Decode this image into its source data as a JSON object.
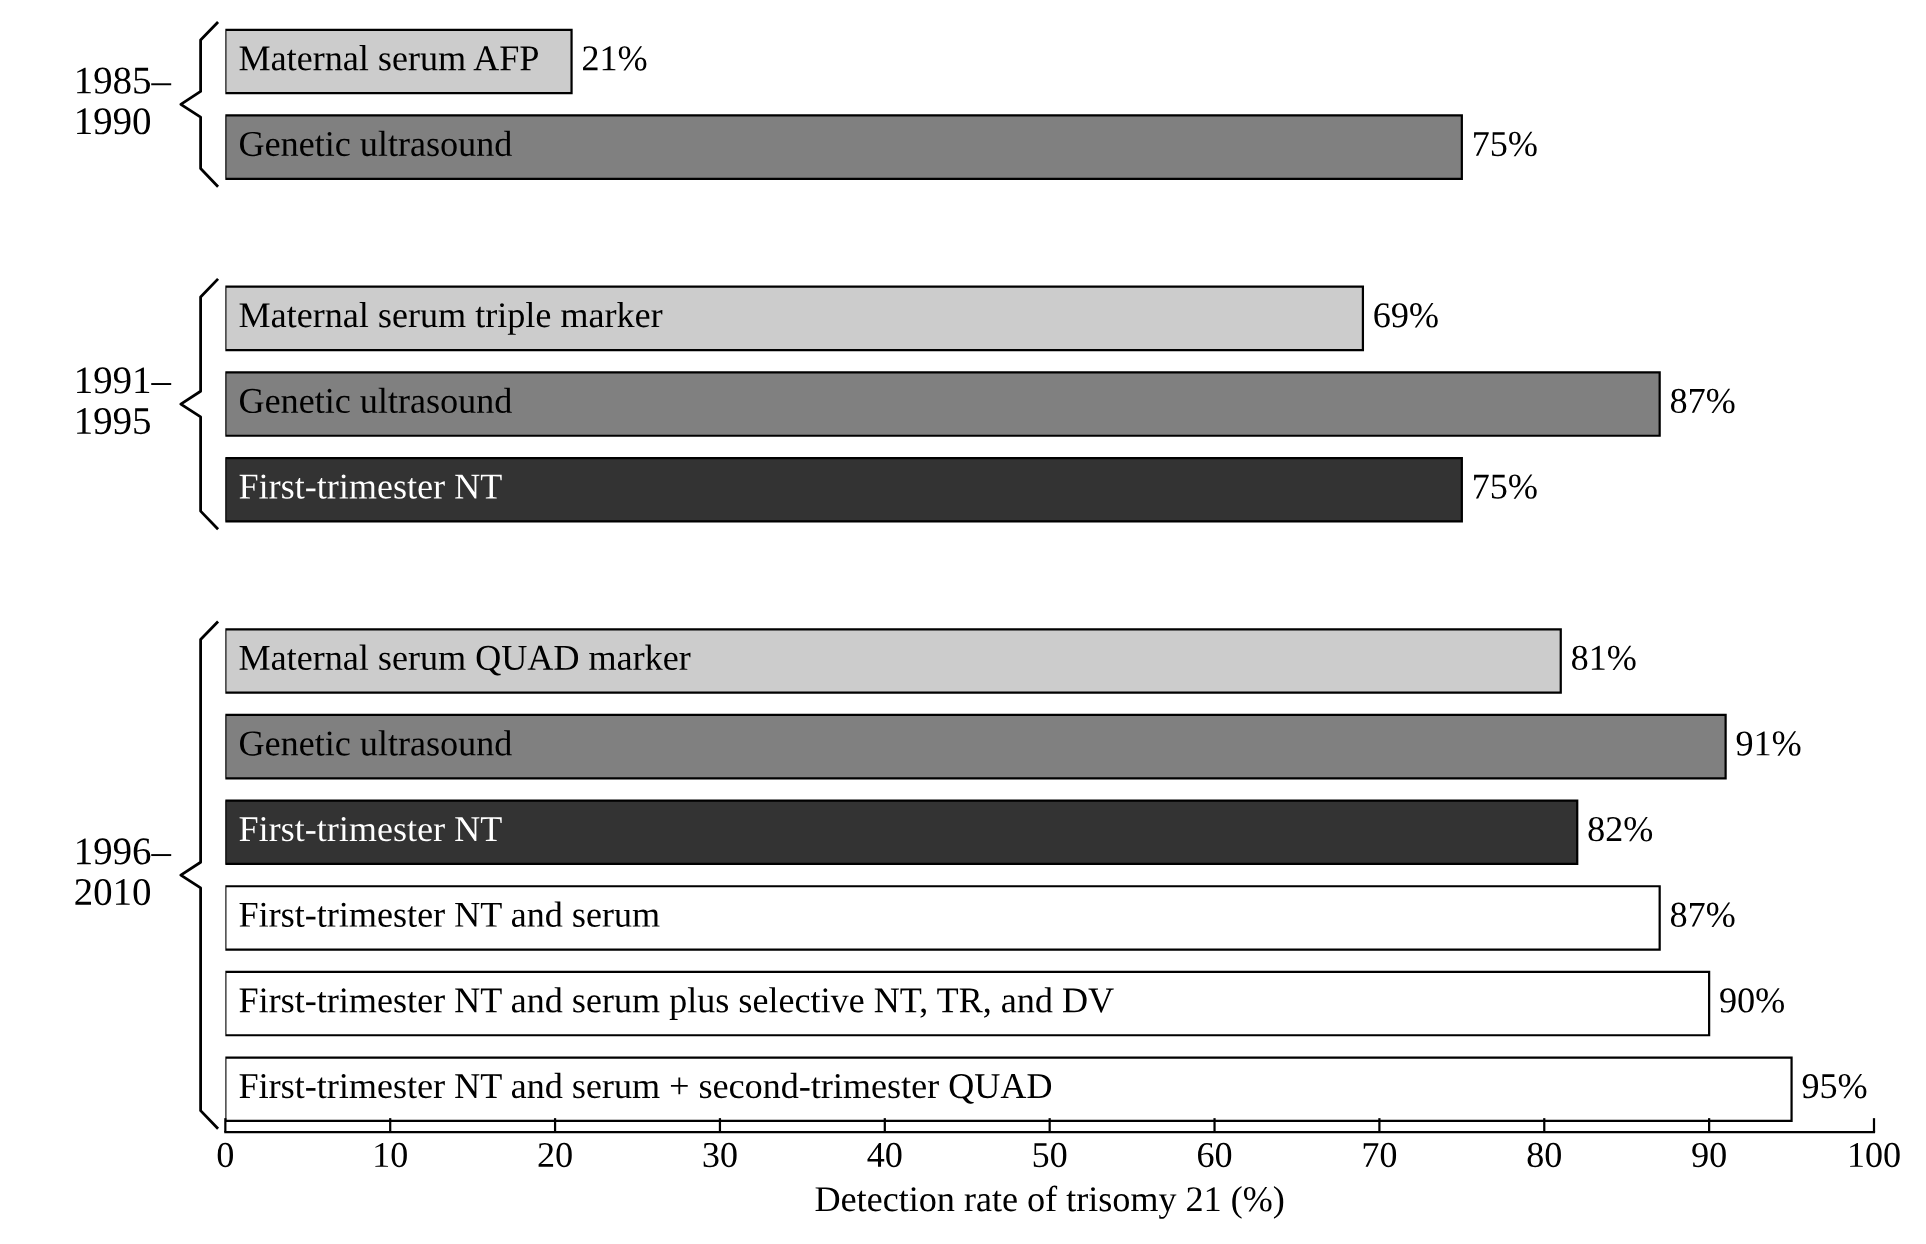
{
  "chart_data": {
    "type": "bar",
    "orientation": "horizontal",
    "categories": [
      "Maternal serum AFP",
      "Genetic ultrasound",
      null,
      "Maternal serum triple marker",
      "Genetic ultrasound",
      "First-trimester NT",
      null,
      "Maternal serum QUAD marker",
      "Genetic ultrasound",
      "First-trimester NT",
      "First-trimester NT and serum",
      "First-trimester NT and serum plus selective NT, TR, and DV",
      "First-trimester NT and serum + second-trimester QUAD"
    ],
    "values": [
      21,
      75,
      null,
      69,
      87,
      75,
      null,
      81,
      91,
      82,
      87,
      90,
      95
    ],
    "value_labels": [
      "21%",
      "75%",
      null,
      "69%",
      "87%",
      "75%",
      null,
      "81%",
      "91%",
      "82%",
      "87%",
      "90%",
      "95%"
    ],
    "colors": [
      "#cccccc",
      "#808080",
      null,
      "#cccccc",
      "#808080",
      "#333333",
      null,
      "#cccccc",
      "#808080",
      "#333333",
      "#ffffff",
      "#ffffff",
      "#ffffff"
    ],
    "xlim": [
      0,
      100
    ],
    "xticks": [
      0,
      10,
      20,
      30,
      40,
      50,
      60,
      70,
      80,
      90,
      100
    ],
    "xlabel": "Detection rate of trisomy 21 (%)",
    "tick_labels": "x",
    "grid": false,
    "annotations": [
      "1985–\n1990",
      "1991–\n1995",
      "1996–\n2010"
    ]
  }
}
